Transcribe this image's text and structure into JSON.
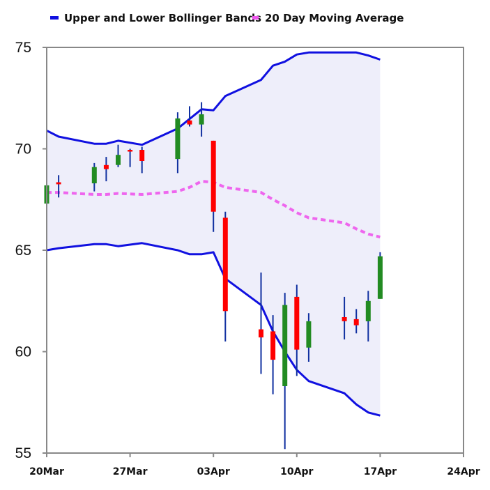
{
  "chart_data": {
    "type": "candlestick",
    "legend": {
      "placement": "top-left",
      "entries": [
        {
          "label": "Upper and Lower Bollinger Bands",
          "color": "#1010e0",
          "style": "solid"
        },
        {
          "label": "20 Day Moving Average",
          "color": "#ee55ee",
          "style": "dashed"
        }
      ]
    },
    "ylim": [
      55,
      75
    ],
    "y_ticks": [
      {
        "value": 75,
        "label": "75"
      },
      {
        "value": 70,
        "label": "70"
      },
      {
        "value": 65,
        "label": "65"
      },
      {
        "value": 60,
        "label": "60"
      },
      {
        "value": 55,
        "label": "55"
      }
    ],
    "xlim": [
      "2023-03-20",
      "2023-04-24"
    ],
    "x_ticks": [
      {
        "date": "2023-03-20",
        "label": "20Mar"
      },
      {
        "date": "2023-03-27",
        "label": "27Mar"
      },
      {
        "date": "2023-04-03",
        "label": "03Apr"
      },
      {
        "date": "2023-04-10",
        "label": "10Apr"
      },
      {
        "date": "2023-04-17",
        "label": "17Apr"
      },
      {
        "date": "2023-04-24",
        "label": "24Apr"
      }
    ],
    "grid": false,
    "colors": {
      "up": "#228b22",
      "down": "#ff0000",
      "wick": "#1030a0",
      "band_fill": "#eeeefa",
      "band_line": "#1010e0",
      "ma_line": "#ee66ee"
    },
    "candles": [
      {
        "date": "2023-03-20",
        "open": 67.3,
        "high": 68.4,
        "low": 66.9,
        "close": 68.2
      },
      {
        "date": "2023-03-21",
        "open": 68.35,
        "high": 68.7,
        "low": 67.6,
        "close": 68.25
      },
      {
        "date": "2023-03-24",
        "open": 68.3,
        "high": 69.3,
        "low": 67.9,
        "close": 69.1
      },
      {
        "date": "2023-03-25",
        "open": 69.2,
        "high": 69.6,
        "low": 68.4,
        "close": 69.0
      },
      {
        "date": "2023-03-26",
        "open": 69.2,
        "high": 70.2,
        "low": 69.1,
        "close": 69.7
      },
      {
        "date": "2023-03-27",
        "open": 69.95,
        "high": 70.0,
        "low": 69.1,
        "close": 69.9
      },
      {
        "date": "2023-03-28",
        "open": 69.95,
        "high": 70.1,
        "low": 68.8,
        "close": 69.4
      },
      {
        "date": "2023-03-31",
        "open": 69.5,
        "high": 71.8,
        "low": 68.8,
        "close": 71.5
      },
      {
        "date": "2023-04-01",
        "open": 71.4,
        "high": 72.1,
        "low": 71.1,
        "close": 71.2
      },
      {
        "date": "2023-04-02",
        "open": 71.2,
        "high": 72.3,
        "low": 70.6,
        "close": 71.7
      },
      {
        "date": "2023-04-03",
        "open": 70.4,
        "high": 70.4,
        "low": 65.9,
        "close": 66.9
      },
      {
        "date": "2023-04-04",
        "open": 66.6,
        "high": 66.9,
        "low": 60.5,
        "close": 62.0
      },
      {
        "date": "2023-04-07",
        "open": 61.1,
        "high": 63.9,
        "low": 58.9,
        "close": 60.7
      },
      {
        "date": "2023-04-08",
        "open": 61.0,
        "high": 61.8,
        "low": 57.9,
        "close": 59.6
      },
      {
        "date": "2023-04-09",
        "open": 58.3,
        "high": 62.9,
        "low": 55.2,
        "close": 62.3
      },
      {
        "date": "2023-04-10",
        "open": 62.7,
        "high": 63.3,
        "low": 58.8,
        "close": 60.1
      },
      {
        "date": "2023-04-11",
        "open": 60.2,
        "high": 61.9,
        "low": 59.5,
        "close": 61.5
      },
      {
        "date": "2023-04-14",
        "open": 61.7,
        "high": 62.7,
        "low": 60.6,
        "close": 61.5
      },
      {
        "date": "2023-04-15",
        "open": 61.6,
        "high": 62.1,
        "low": 60.9,
        "close": 61.3
      },
      {
        "date": "2023-04-16",
        "open": 61.5,
        "high": 63.0,
        "low": 60.5,
        "close": 62.5
      },
      {
        "date": "2023-04-17",
        "open": 62.6,
        "high": 64.9,
        "low": 62.6,
        "close": 64.7
      }
    ],
    "upper_band": [
      {
        "date": "2023-03-20",
        "value": 70.9
      },
      {
        "date": "2023-03-21",
        "value": 70.6
      },
      {
        "date": "2023-03-24",
        "value": 70.25
      },
      {
        "date": "2023-03-25",
        "value": 70.25
      },
      {
        "date": "2023-03-26",
        "value": 70.4
      },
      {
        "date": "2023-03-28",
        "value": 70.2
      },
      {
        "date": "2023-03-31",
        "value": 71.0
      },
      {
        "date": "2023-04-02",
        "value": 71.95
      },
      {
        "date": "2023-04-03",
        "value": 71.9
      },
      {
        "date": "2023-04-04",
        "value": 72.6
      },
      {
        "date": "2023-04-07",
        "value": 73.4
      },
      {
        "date": "2023-04-08",
        "value": 74.1
      },
      {
        "date": "2023-04-09",
        "value": 74.3
      },
      {
        "date": "2023-04-10",
        "value": 74.65
      },
      {
        "date": "2023-04-11",
        "value": 74.75
      },
      {
        "date": "2023-04-14",
        "value": 74.75
      },
      {
        "date": "2023-04-15",
        "value": 74.75
      },
      {
        "date": "2023-04-16",
        "value": 74.6
      },
      {
        "date": "2023-04-17",
        "value": 74.4
      }
    ],
    "lower_band": [
      {
        "date": "2023-03-20",
        "value": 65.0
      },
      {
        "date": "2023-03-21",
        "value": 65.1
      },
      {
        "date": "2023-03-24",
        "value": 65.3
      },
      {
        "date": "2023-03-25",
        "value": 65.3
      },
      {
        "date": "2023-03-26",
        "value": 65.2
      },
      {
        "date": "2023-03-28",
        "value": 65.35
      },
      {
        "date": "2023-03-31",
        "value": 65.0
      },
      {
        "date": "2023-04-01",
        "value": 64.8
      },
      {
        "date": "2023-04-02",
        "value": 64.8
      },
      {
        "date": "2023-04-03",
        "value": 64.9
      },
      {
        "date": "2023-04-04",
        "value": 63.6
      },
      {
        "date": "2023-04-07",
        "value": 62.3
      },
      {
        "date": "2023-04-08",
        "value": 61.0
      },
      {
        "date": "2023-04-09",
        "value": 60.0
      },
      {
        "date": "2023-04-10",
        "value": 59.1
      },
      {
        "date": "2023-04-11",
        "value": 58.55
      },
      {
        "date": "2023-04-14",
        "value": 57.95
      },
      {
        "date": "2023-04-15",
        "value": 57.4
      },
      {
        "date": "2023-04-16",
        "value": 57.0
      },
      {
        "date": "2023-04-17",
        "value": 56.85
      }
    ],
    "moving_average": [
      {
        "date": "2023-03-20",
        "value": 67.85
      },
      {
        "date": "2023-03-21",
        "value": 67.85
      },
      {
        "date": "2023-03-24",
        "value": 67.75
      },
      {
        "date": "2023-03-25",
        "value": 67.75
      },
      {
        "date": "2023-03-26",
        "value": 67.8
      },
      {
        "date": "2023-03-28",
        "value": 67.75
      },
      {
        "date": "2023-03-31",
        "value": 67.9
      },
      {
        "date": "2023-04-01",
        "value": 68.1
      },
      {
        "date": "2023-04-02",
        "value": 68.4
      },
      {
        "date": "2023-04-03",
        "value": 68.35
      },
      {
        "date": "2023-04-04",
        "value": 68.1
      },
      {
        "date": "2023-04-07",
        "value": 67.85
      },
      {
        "date": "2023-04-08",
        "value": 67.5
      },
      {
        "date": "2023-04-09",
        "value": 67.2
      },
      {
        "date": "2023-04-10",
        "value": 66.85
      },
      {
        "date": "2023-04-11",
        "value": 66.6
      },
      {
        "date": "2023-04-14",
        "value": 66.35
      },
      {
        "date": "2023-04-15",
        "value": 66.05
      },
      {
        "date": "2023-04-16",
        "value": 65.8
      },
      {
        "date": "2023-04-17",
        "value": 65.65
      }
    ]
  }
}
